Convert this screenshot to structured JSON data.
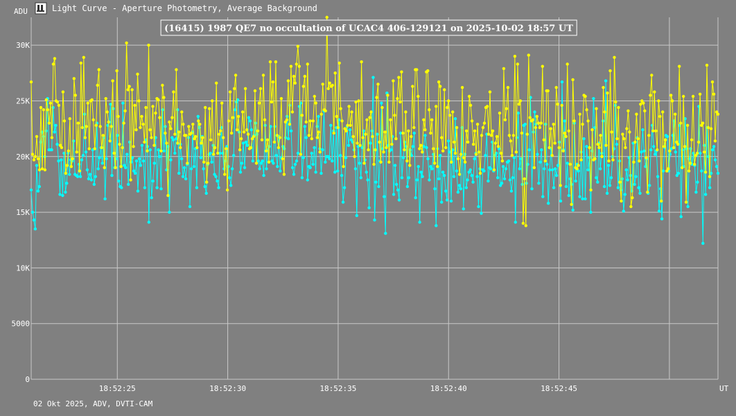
{
  "window": {
    "title": "Light Curve - Aperture Photometry, Average Background",
    "icon": "light-curve-app-icon"
  },
  "chart_data": {
    "type": "line",
    "title": "(16415) 1987 QE7 no occultation of UCAC4 406-129121 on 2025-10-02  18:57 UT",
    "ylabel": "ADU",
    "xlabel": "UT",
    "footer": "02 Okt 2025, ADV, DVTI-CAM",
    "x_range": [
      "18:52:21.1",
      "18:52:52.2"
    ],
    "ylim": [
      0,
      32500
    ],
    "y_ticks": [
      0,
      5000,
      10000,
      15000,
      20000,
      25000,
      30000
    ],
    "y_tick_labels": [
      "0",
      "5000",
      "10K",
      "15K",
      "20K",
      "25K",
      "30K"
    ],
    "x_ticks": [
      "18:52:25",
      "18:52:30",
      "18:52:35",
      "18:52:40",
      "18:52:45",
      "18:52:50"
    ],
    "x_tick_labels": [
      "18:52:25",
      "18:52:30",
      "18:52:35",
      "18:52:40",
      "18:52:45",
      ""
    ],
    "grid": true,
    "series": [
      {
        "color": "#ffff00",
        "marker": "circle",
        "values": [
          26700,
          20200,
          19700,
          20000,
          21800,
          19800,
          18800,
          24400,
          18900,
          24200,
          18800,
          25100,
          24200,
          23000,
          24800,
          21700,
          28300,
          28800,
          25000,
          24900,
          24600,
          21000,
          20800,
          25800,
          23200,
          18500,
          19200,
          20500,
          23400,
          19100,
          19800,
          27000,
          25500,
          20400,
          23000,
          18700,
          28400,
          22600,
          28900,
          21700,
          22700,
          24800,
          20700,
          25000,
          25100,
          23300,
          20700,
          22800,
          26400,
          27800,
          22700,
          20800,
          21900,
          19000,
          25200,
          24000,
          23100,
          21400,
          22700,
          26800,
          20300,
          19000,
          27700,
          23600,
          21100,
          19100,
          20800,
          23000,
          24100,
          30200,
          26000,
          26300,
          17900,
          26000,
          20900,
          24600,
          22400,
          27400,
          25000,
          22600,
          23600,
          22900,
          21300,
          24400,
          20500,
          30000,
          22400,
          21700,
          24500,
          21000,
          23900,
          25200,
          25100,
          23500,
          20500,
          26400,
          25300,
          22100,
          21200,
          16500,
          23100,
          22500,
          23500,
          25800,
          22000,
          27800,
          21200,
          22200,
          20800,
          24000,
          22900,
          21900,
          21900,
          19400,
          22700,
          22000,
          22100,
          22900,
          21600,
          21800,
          20800,
          23200,
          22900,
          21200,
          21700,
          19500,
          24400,
          17700,
          19400,
          24300,
          21500,
          25000,
          20200,
          20800,
          26600,
          20300,
          22000,
          22300,
          24800,
          21700,
          18400,
          20700,
          17000,
          23200,
          25800,
          22100,
          23500,
          26100,
          27300,
          22400,
          23600,
          20600,
          21600,
          24000,
          22200,
          26100,
          22400,
          22000,
          20700,
          20800,
          21600,
          21800,
          25900,
          19400,
          22300,
          24800,
          26100,
          21500,
          27300,
          23300,
          20500,
          21500,
          19500,
          28500,
          24900,
          26700,
          21300,
          28500,
          21900,
          20800,
          21700,
          25200,
          19800,
          18400,
          23100,
          23300,
          26800,
          22900,
          28100,
          24000,
          27200,
          26600,
          28300,
          29900,
          28100,
          20200,
          23700,
          26300,
          27200,
          23100,
          28300,
          21900,
          23200,
          21600,
          23200,
          25400,
          24800,
          21700,
          22200,
          20400,
          23800,
          26500,
          24200,
          24100,
          32500,
          26100,
          26600,
          26300,
          26400,
          22100,
          27500,
          23600,
          22600,
          28400,
          24300,
          23200,
          19100,
          22500,
          22300,
          22800,
          24500,
          22800,
          24000,
          21800,
          20000,
          24900,
          21200,
          25000,
          21000,
          28500,
          21700,
          19400,
          22000,
          23300,
          20600,
          23500,
          24000,
          21800,
          19300,
          20600,
          25300,
          26500,
          21300,
          19500,
          24400,
          20400,
          22200,
          20800,
          25500,
          19500,
          23300,
          21100,
          26800,
          23700,
          21600,
          25200,
          27100,
          24900,
          27600,
          22100,
          20600,
          24000,
          19600,
          22300,
          19200,
          21800,
          26300,
          22600,
          27800,
          27800,
          25400,
          20700,
          21000,
          20400,
          23300,
          22400,
          27600,
          27700,
          24200,
          22100,
          23300,
          20700,
          19400,
          24500,
          19100,
          26700,
          26300,
          21700,
          20500,
          26000,
          20800,
          24400,
          25000,
          23700,
          19500,
          24000,
          21300,
          20300,
          22600,
          19800,
          18400,
          20200,
          26200,
          19900,
          19500,
          22300,
          21300,
          25400,
          24600,
          23200,
          21100,
          22300,
          20200,
          22900,
          20400,
          18500,
          21900,
          22600,
          23000,
          24400,
          24500,
          22000,
          25800,
          21900,
          22300,
          18800,
          21200,
          21800,
          20900,
          23900,
          20300,
          19600,
          27900,
          23300,
          24300,
          26200,
          21900,
          21400,
          20100,
          21900,
          29000,
          20400,
          28300,
          24700,
          25000,
          22100,
          14000,
          18000,
          13800,
          22000,
          29100,
          23500,
          23200,
          23300,
          19000,
          22600,
          23600,
          23000,
          22600,
          23000,
          28100,
          21500,
          19600,
          25900,
          25900,
          20800,
          22500,
          20100,
          22900,
          21200,
          26200,
          24700,
          20800,
          17400,
          24600,
          20500,
          22100,
          21800,
          28300,
          22300,
          19300,
          15700,
          26900,
          23200,
          19000,
          18900,
          19200,
          23800,
          19700,
          22900,
          25500,
          25400,
          24200,
          23200,
          20800,
          17000,
          22400,
          19700,
          19800,
          24300,
          21100,
          20800,
          21900,
          20000,
          26200,
          24000,
          21000,
          25700,
          19600,
          27700,
          22200,
          19700,
          28900,
          24900,
          21600,
          24400,
          17700,
          16000,
          22000,
          21600,
          20800,
          22500,
          24100,
          22200,
          15500,
          16300,
          19500,
          21300,
          23800,
          21600,
          19600,
          24700,
          25000,
          24800,
          24100,
          19900,
          16800,
          21900,
          25500,
          27300,
          22300,
          25800,
          22300,
          20600,
          25000,
          23600,
          16000,
          24000,
          20900,
          21500,
          18700,
          18900,
          20500,
          25500,
          25000,
          20800,
          23800,
          21300,
          21100,
          28100,
          23000,
          19000,
          25400,
          20900,
          15900,
          22800,
          18700,
          19400,
          21500,
          25400,
          19300,
          20100,
          20300,
          21300,
          25600,
          22800,
          23000,
          20400,
          18600,
          28200,
          22600,
          18200,
          22500,
          26700,
          25600,
          21400,
          24000,
          23800
        ]
      },
      {
        "color": "#00ffff",
        "marker": "circle",
        "values": [
          17000,
          15000,
          14300,
          13500,
          19200,
          16900,
          17300,
          21300,
          22200,
          21800,
          20000,
          22300,
          25200,
          20600,
          20600,
          20600,
          24400,
          22200,
          22800,
          21100,
          19600,
          16600,
          19700,
          16500,
          20300,
          16800,
          17600,
          20300,
          18400,
          19700,
          19600,
          21400,
          18400,
          18300,
          18200,
          19300,
          18200,
          19700,
          20100,
          23800,
          20400,
          18800,
          18000,
          18400,
          17900,
          20600,
          17500,
          18200,
          23000,
          18900,
          19900,
          20800,
          19400,
          21700,
          16200,
          19800,
          22800,
          23100,
          24700,
          18300,
          24300,
          19000,
          19800,
          21900,
          17800,
          17300,
          17200,
          24800,
          19200,
          19000,
          20200,
          17500,
          21300,
          19500,
          19900,
          18700,
          18500,
          19600,
          16900,
          19800,
          19200,
          21000,
          19600,
          17200,
          21500,
          20900,
          14100,
          20600,
          16300,
          17800,
          19400,
          21700,
          17200,
          20600,
          20000,
          17100,
          24200,
          20500,
          22700,
          18800,
          20900,
          15000,
          19700,
          21700,
          21500,
          20300,
          21600,
          24200,
          18500,
          21100,
          19800,
          18200,
          19000,
          18000,
          19300,
          21700,
          15500,
          18900,
          22200,
          19100,
          20700,
          17200,
          23600,
          22600,
          19900,
          21800,
          18900,
          17300,
          16700,
          19300,
          20200,
          20300,
          19500,
          21000,
          18400,
          18200,
          17800,
          17200,
          20300,
          22600,
          20300,
          18900,
          19600,
          20900,
          19100,
          18100,
          17400,
          18900,
          20100,
          24200,
          24900,
          25100,
          22200,
          18600,
          19400,
          21200,
          19000,
          21300,
          21000,
          23500,
          23200,
          22400,
          19600,
          21900,
          23000,
          22000,
          19600,
          18900,
          19400,
          19600,
          18300,
          22800,
          18900,
          20600,
          20900,
          22700,
          19600,
          19400,
          22700,
          20100,
          19100,
          21800,
          18700,
          19900,
          20900,
          20700,
          21700,
          23600,
          21600,
          24600,
          22300,
          19000,
          18400,
          19300,
          19600,
          20300,
          24500,
          24800,
          18100,
          19900,
          22700,
          21700,
          17900,
          19100,
          19000,
          20300,
          19300,
          20800,
          18600,
          22700,
          23600,
          20700,
          18500,
          20600,
          24100,
          19500,
          20000,
          20000,
          19800,
          22800,
          19600,
          22300,
          18600,
          22600,
          18700,
          23300,
          20100,
          18300,
          15900,
          17200,
          19900,
          22700,
          21000,
          22400,
          21500,
          21300,
          20600,
          18900,
          14700,
          20900,
          19400,
          18100,
          20800,
          22300,
          19700,
          18600,
          17900,
          15400,
          21200,
          22300,
          27100,
          14300,
          17700,
          22000,
          17300,
          19600,
          24800,
          20700,
          16400,
          13100,
          25700,
          21000,
          20500,
          20600,
          21800,
          16600,
          19200,
          17500,
          17000,
          16100,
          22100,
          18100,
          19900,
          21300,
          20900,
          17300,
          18100,
          20600,
          20100,
          20900,
          22100,
          16300,
          17900,
          19100,
          14100,
          18600,
          18200,
          20900,
          21900,
          20800,
          19800,
          17900,
          19100,
          18900,
          20200,
          17100,
          13800,
          20700,
          18000,
          20100,
          15900,
          18600,
          18300,
          16900,
          16100,
          21400,
          20400,
          16000,
          20600,
          18200,
          23400,
          18700,
          16800,
          17400,
          17100,
          22600,
          15300,
          20200,
          17200,
          17900,
          18600,
          18800,
          18300,
          17700,
          19800,
          20300,
          18200,
          15500,
          18900,
          14900,
          18800,
          18700,
          20100,
          22000,
          17800,
          19000,
          18900,
          21300,
          18700,
          20100,
          20300,
          18100,
          20700,
          17400,
          17600,
          19100,
          18000,
          18900,
          19500,
          19600,
          17900,
          16900,
          18100,
          19900,
          14100,
          21700,
          23900,
          18900,
          19800,
          17500,
          22800,
          22900,
          17600,
          19300,
          20600,
          25300,
          17100,
          22200,
          24000,
          22900,
          20200,
          17600,
          19500,
          20600,
          16400,
          18900,
          22900,
          19300,
          15800,
          18800,
          20700,
          18800,
          17200,
          18900,
          18300,
          19200,
          21300,
          16000,
          26700,
          20600,
          23200,
          17300,
          19400,
          16500,
          18000,
          17500,
          15200,
          23000,
          17800,
          19300,
          18700,
          16400,
          20400,
          16200,
          21600,
          16200,
          20900,
          18800,
          19900,
          15000,
          20500,
          25200,
          22600,
          18100,
          17700,
          21200,
          18900,
          20300,
          23200,
          17300,
          26800,
          16700,
          19200,
          17400,
          18100,
          20000,
          20700,
          24600,
          21100,
          17200,
          19600,
          17000,
          18000,
          15100,
          16600,
          18800,
          17900,
          19900,
          18300,
          16900,
          21200,
          17500,
          18200,
          21700,
          17200,
          16700,
          20400,
          22400,
          20500,
          19100,
          19800,
          16700,
          17400,
          20600,
          22800,
          20900,
          20200,
          20500,
          18200,
          15100,
          17100,
          14400,
          18700,
          20800,
          21900,
          21800,
          18700,
          20200,
          20700,
          21900,
          23200,
          20400,
          18300,
          18500,
          22800,
          14600,
          20600,
          19100,
          23400,
          20700,
          15500,
          19800,
          20700,
          19300,
          20300,
          19200,
          16800,
          17700,
          24500,
          20300,
          18700,
          12200,
          21000,
          16600,
          22600,
          20000,
          17200,
          18500,
          20600,
          20900,
          19700,
          19100,
          18500
        ]
      }
    ]
  }
}
